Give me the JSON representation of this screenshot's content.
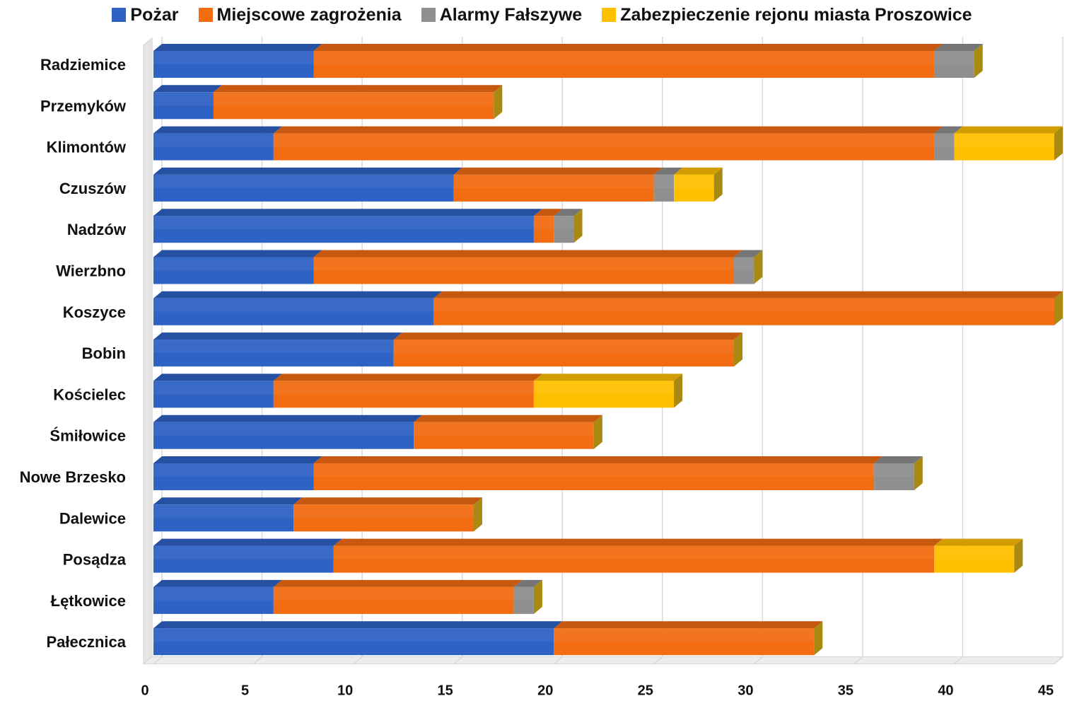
{
  "chart_data": {
    "type": "bar",
    "orientation": "horizontal",
    "stacked": true,
    "style": "3d",
    "categories": [
      "Radziemice",
      "Przemyków",
      "Klimontów",
      "Czuszów",
      "Nadzów",
      "Wierzbno",
      "Koszyce",
      "Bobin",
      "Kościelec",
      "Śmiłowice",
      "Nowe Brzesko",
      "Dalewice",
      "Posądza",
      "Łętkowice",
      "Pałecznica"
    ],
    "series": [
      {
        "name": "Pożar",
        "color": "#2e62c4",
        "values": [
          8,
          3,
          6,
          15,
          19,
          8,
          14,
          12,
          6,
          13,
          8,
          7,
          9,
          6,
          20
        ]
      },
      {
        "name": "Miejscowe zagrożenia",
        "color": "#f26c12",
        "values": [
          31,
          14,
          33,
          10,
          1,
          21,
          31,
          17,
          13,
          9,
          28,
          9,
          30,
          12,
          13
        ]
      },
      {
        "name": "Alarmy Fałszywe",
        "color": "#8f8f8f",
        "values": [
          2,
          0,
          1,
          1,
          1,
          1,
          0,
          0,
          0,
          0,
          2,
          0,
          0,
          1,
          0
        ]
      },
      {
        "name": "Zabezpieczenie rejonu miasta Proszowice",
        "color": "#ffc000",
        "values": [
          0,
          0,
          5,
          2,
          0,
          0,
          0,
          0,
          7,
          0,
          0,
          0,
          4,
          0,
          0
        ]
      }
    ],
    "xlim": [
      0,
      45
    ],
    "xticks": [
      "0",
      "5",
      "10",
      "15",
      "20",
      "25",
      "30",
      "35",
      "40",
      "45"
    ],
    "grid": "vertical",
    "legend_position": "top"
  }
}
